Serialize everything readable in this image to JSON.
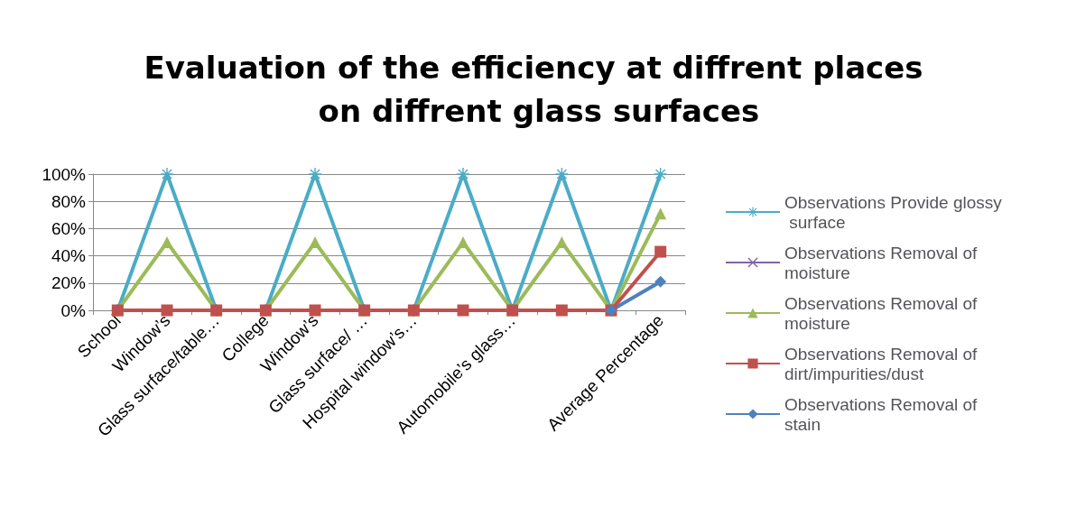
{
  "chart_data": {
    "type": "line",
    "title": "Evaluation of the efficiency at diffrent places on diffrent glass surfaces",
    "categories": [
      "School",
      "Window’s",
      "Glass surface/table…",
      "College",
      "Window’s",
      "Glass surface/ …",
      "Hospital window’s…",
      null,
      "Automobile’s glass…",
      null,
      null,
      "Average Percentage"
    ],
    "series": [
      {
        "name": "Observations Provide glossy surface",
        "color": "#4bacc6",
        "marker": "star",
        "values": [
          0,
          100,
          0,
          0,
          100,
          0,
          0,
          100,
          0,
          100,
          0,
          100
        ]
      },
      {
        "name": "Observations Removal of moisture",
        "color": "#8064a2",
        "marker": "cross",
        "values": [
          null,
          null,
          null,
          null,
          null,
          null,
          null,
          null,
          null,
          null,
          null,
          null
        ]
      },
      {
        "name": "Observations Removal of moisture",
        "color": "#9bbb59",
        "marker": "triangle",
        "values": [
          0,
          50,
          0,
          0,
          50,
          0,
          0,
          50,
          0,
          50,
          0,
          71
        ]
      },
      {
        "name": "Observations Removal of dirt/impurities/dust",
        "color": "#c0504d",
        "marker": "square",
        "values": [
          0,
          0,
          0,
          0,
          0,
          0,
          0,
          0,
          0,
          0,
          0,
          43
        ]
      },
      {
        "name": "Observations Removal of stain",
        "color": "#4f81bd",
        "marker": "diamond",
        "values": [
          null,
          null,
          null,
          null,
          null,
          null,
          null,
          null,
          null,
          null,
          0,
          21
        ]
      }
    ],
    "ylim": [
      0,
      100
    ],
    "yticks": [
      {
        "value": 0,
        "label": "0%"
      },
      {
        "value": 20,
        "label": "20%"
      },
      {
        "value": 40,
        "label": "40%"
      },
      {
        "value": 60,
        "label": "60%"
      },
      {
        "value": 80,
        "label": "80%"
      },
      {
        "value": 100,
        "label": "100%"
      }
    ],
    "grid": "y",
    "legend": "right"
  }
}
